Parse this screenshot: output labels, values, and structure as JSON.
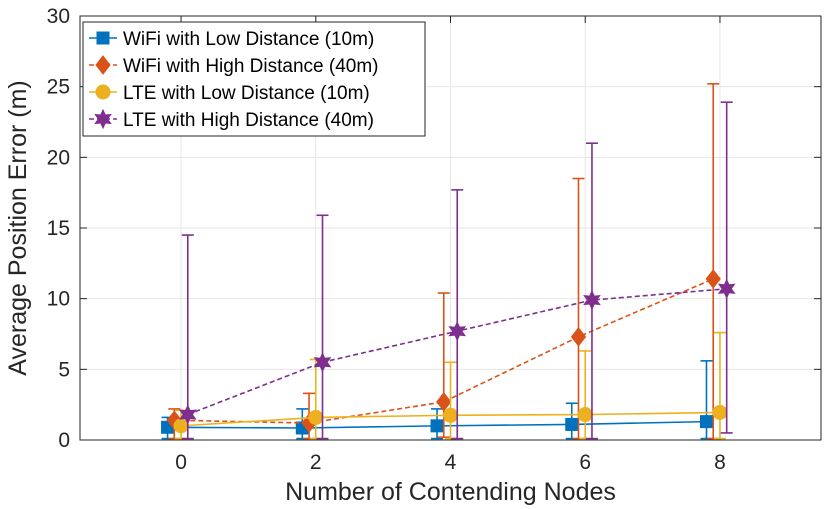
{
  "chart_data": {
    "type": "line",
    "title": "",
    "xlabel": "Number of Contending Nodes",
    "ylabel": "Average Position Error (m)",
    "xlim": [
      -1.5,
      9.5
    ],
    "ylim": [
      0,
      30
    ],
    "xticks": [
      "0",
      "2",
      "4",
      "6",
      "8"
    ],
    "yticks": [
      "0",
      "5",
      "10",
      "15",
      "20",
      "25",
      "30"
    ],
    "grid": true,
    "legend_position": "top-left",
    "x": [
      0,
      2,
      4,
      6,
      8
    ],
    "series": [
      {
        "name": "WiFi with Low Distance (10m)",
        "color": "#0072BD",
        "marker": "square",
        "line": "solid",
        "offset": -0.2,
        "values": [
          0.9,
          0.85,
          1.0,
          1.1,
          1.3
        ],
        "err_low": [
          0.1,
          0.1,
          0.1,
          0.1,
          0.1
        ],
        "err_high": [
          1.6,
          2.2,
          2.2,
          2.6,
          5.6
        ]
      },
      {
        "name": "WiFi with High Distance (40m)",
        "color": "#D95319",
        "marker": "diamond",
        "line": "dashed",
        "offset": -0.1,
        "values": [
          1.4,
          1.2,
          2.7,
          7.3,
          11.4
        ],
        "err_low": [
          0.1,
          0.1,
          0.2,
          0.1,
          0.1
        ],
        "err_high": [
          2.2,
          3.3,
          10.4,
          18.5,
          25.2
        ]
      },
      {
        "name": "LTE with Low Distance (10m)",
        "color": "#EDB120",
        "marker": "circle",
        "line": "solid",
        "offset": 0.0,
        "values": [
          1.0,
          1.6,
          1.75,
          1.8,
          1.95
        ],
        "err_low": [
          0.1,
          0.1,
          0.1,
          0.1,
          0.1
        ],
        "err_high": [
          2.1,
          5.7,
          5.5,
          6.3,
          7.6
        ]
      },
      {
        "name": "LTE with High Distance (40m)",
        "color": "#7E2F8E",
        "marker": "hexagram",
        "line": "dashed",
        "offset": 0.1,
        "values": [
          1.8,
          5.5,
          7.7,
          9.9,
          10.7
        ],
        "err_low": [
          0.1,
          0.1,
          0.1,
          0.1,
          0.5
        ],
        "err_high": [
          14.5,
          15.9,
          17.7,
          21.0,
          23.9
        ]
      }
    ]
  }
}
